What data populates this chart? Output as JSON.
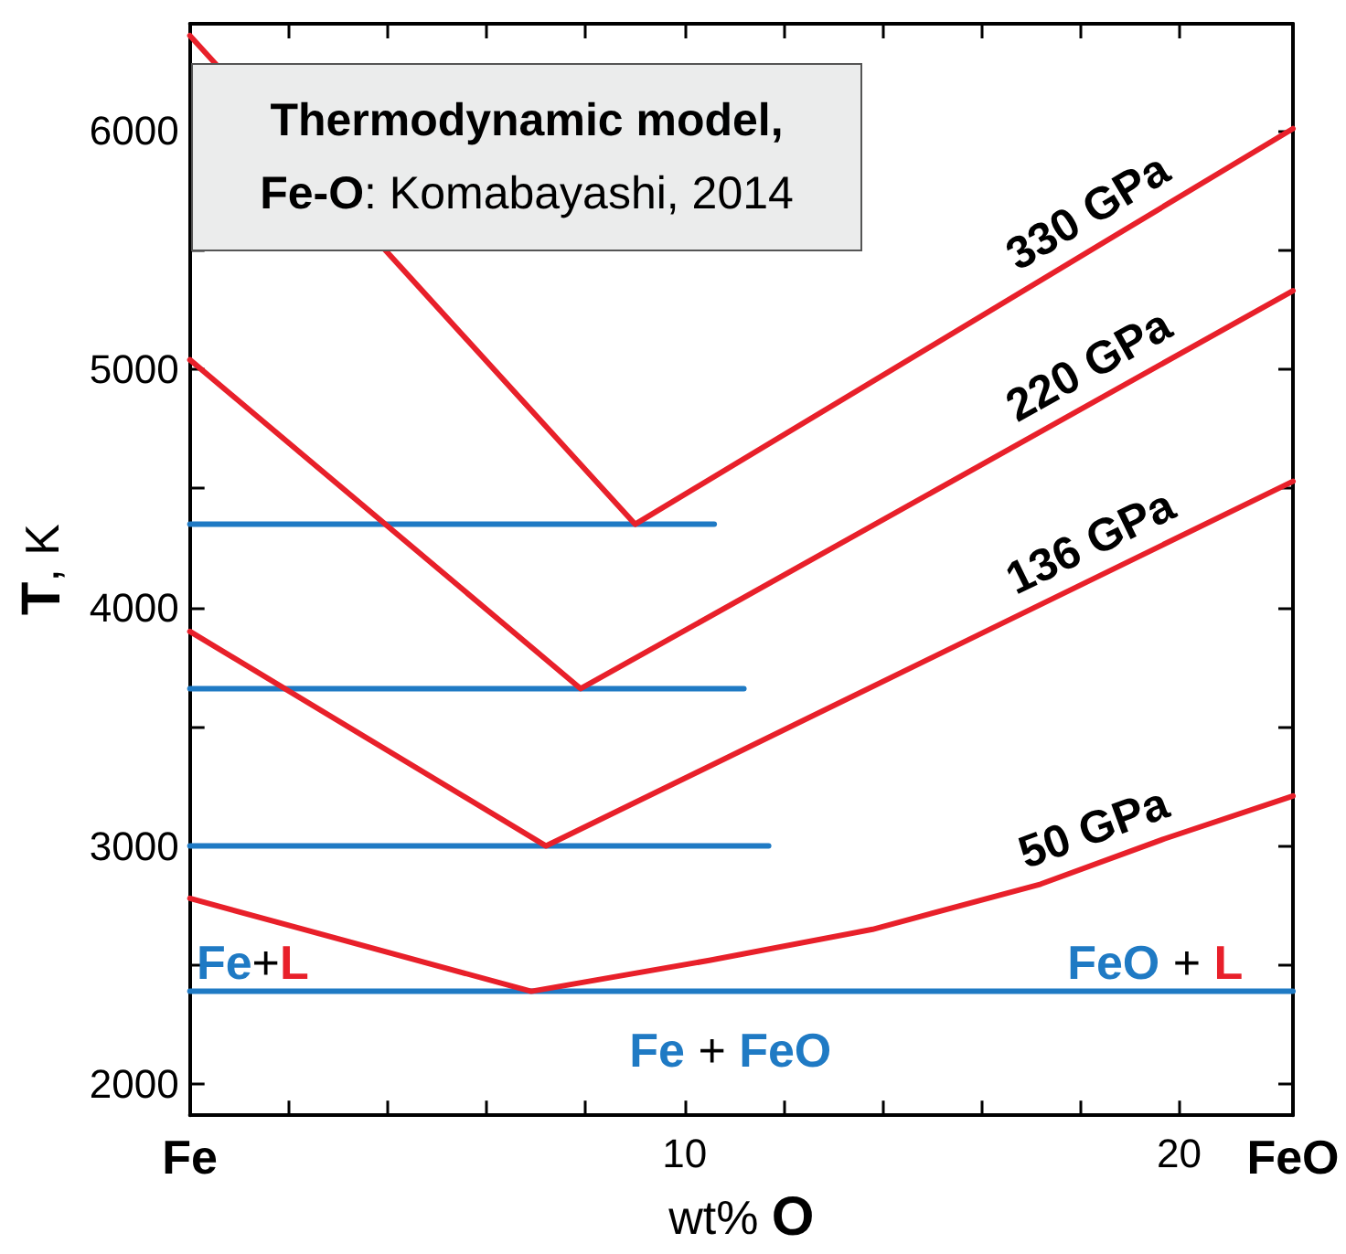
{
  "chart_data": {
    "type": "line",
    "title": "Thermodynamic model, Fe-O: Komabayashi, 2014",
    "xlabel": "wt% O",
    "ylabel": "T, K",
    "marker": "none",
    "xlim": [
      0,
      22.3
    ],
    "ylim": [
      1870,
      6450
    ],
    "xticks": [
      {
        "value": 0,
        "label": "Fe"
      },
      {
        "value": 2,
        "label": null
      },
      {
        "value": 4,
        "label": null
      },
      {
        "value": 6,
        "label": null
      },
      {
        "value": 8,
        "label": null
      },
      10,
      {
        "value": 12,
        "label": null
      },
      {
        "value": 14,
        "label": null
      },
      {
        "value": 16,
        "label": null
      },
      {
        "value": 18,
        "label": null
      },
      20,
      {
        "value": 22.3,
        "label": "FeO"
      }
    ],
    "yticks": [
      2000,
      {
        "value": 2500,
        "label": null
      },
      3000,
      {
        "value": 3500,
        "label": null
      },
      4000,
      {
        "value": 4500,
        "label": null
      },
      5000,
      {
        "value": 5500,
        "label": null
      },
      6000
    ],
    "series": [
      {
        "name": "330 GPa",
        "color": "#e8202a",
        "x": [
          0,
          9.0,
          22.3
        ],
        "values": [
          6400,
          4350,
          6010
        ]
      },
      {
        "name": "220 GPa",
        "color": "#e8202a",
        "x": [
          0,
          7.9,
          22.3
        ],
        "values": [
          5040,
          3660,
          5330
        ]
      },
      {
        "name": "136 GPa",
        "color": "#e8202a",
        "x": [
          0,
          7.2,
          22.3
        ],
        "values": [
          3900,
          3000,
          4530
        ]
      },
      {
        "name": "50 GPa",
        "color": "#e8202a",
        "x": [
          0,
          6.9,
          10.5,
          13.8,
          17.2,
          19.7,
          22.3
        ],
        "values": [
          2780,
          2390,
          2520,
          2650,
          2840,
          3030,
          3210
        ]
      },
      {
        "color": "#1f7ac4",
        "x": [
          0,
          10.6
        ],
        "values": [
          4350,
          4350
        ]
      },
      {
        "color": "#1f7ac4",
        "x": [
          0,
          11.2
        ],
        "values": [
          3660,
          3660
        ]
      },
      {
        "color": "#1f7ac4",
        "x": [
          0,
          11.7
        ],
        "values": [
          3000,
          3000
        ]
      },
      {
        "color": "#1f7ac4",
        "x": [
          0,
          22.3
        ],
        "values": [
          2390,
          2390
        ]
      }
    ],
    "annotations": [
      "Fe+L",
      "FeO + L",
      "Fe + FeO"
    ]
  }
}
